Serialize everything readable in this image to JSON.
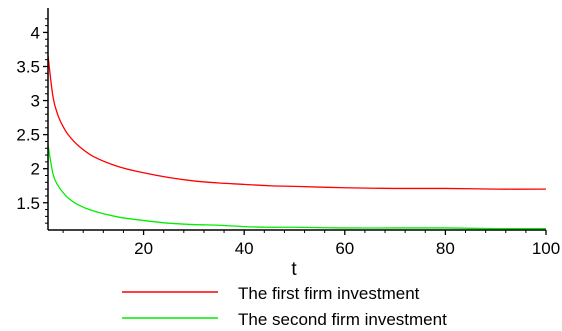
{
  "chart_data": {
    "type": "line",
    "title": "",
    "xlabel": "t",
    "ylabel": "",
    "xlim": [
      1,
      100
    ],
    "ylim": [
      1.1,
      4.3
    ],
    "x_ticks": [
      20,
      40,
      60,
      80,
      100
    ],
    "x_tick_labels": [
      "20",
      "40",
      "60",
      "80",
      "100"
    ],
    "y_ticks": [
      1.5,
      2,
      2.5,
      3,
      3.5,
      4
    ],
    "y_tick_labels": [
      "1.5",
      "2",
      "2.5",
      "3",
      "3.5",
      "4"
    ],
    "grid": false,
    "legend_position": "bottom",
    "series": [
      {
        "name": "The first firm investment",
        "color": "#ff0000",
        "x": [
          1,
          2,
          3,
          4,
          5,
          7,
          10,
          15,
          20,
          25,
          30,
          35,
          40,
          45,
          50,
          60,
          70,
          80,
          90,
          100
        ],
        "y": [
          3.66,
          3.05,
          2.78,
          2.62,
          2.5,
          2.34,
          2.18,
          2.03,
          1.94,
          1.87,
          1.82,
          1.79,
          1.77,
          1.75,
          1.74,
          1.72,
          1.71,
          1.71,
          1.7,
          1.7
        ]
      },
      {
        "name": "The second firm investment",
        "color": "#00ee00",
        "x": [
          1,
          2,
          3,
          4,
          5,
          7,
          10,
          15,
          20,
          25,
          30,
          35,
          40,
          45,
          50,
          60,
          70,
          80,
          90,
          100
        ],
        "y": [
          2.35,
          1.92,
          1.75,
          1.65,
          1.57,
          1.47,
          1.38,
          1.29,
          1.24,
          1.2,
          1.18,
          1.17,
          1.15,
          1.14,
          1.14,
          1.13,
          1.13,
          1.13,
          1.12,
          1.12
        ]
      }
    ]
  }
}
